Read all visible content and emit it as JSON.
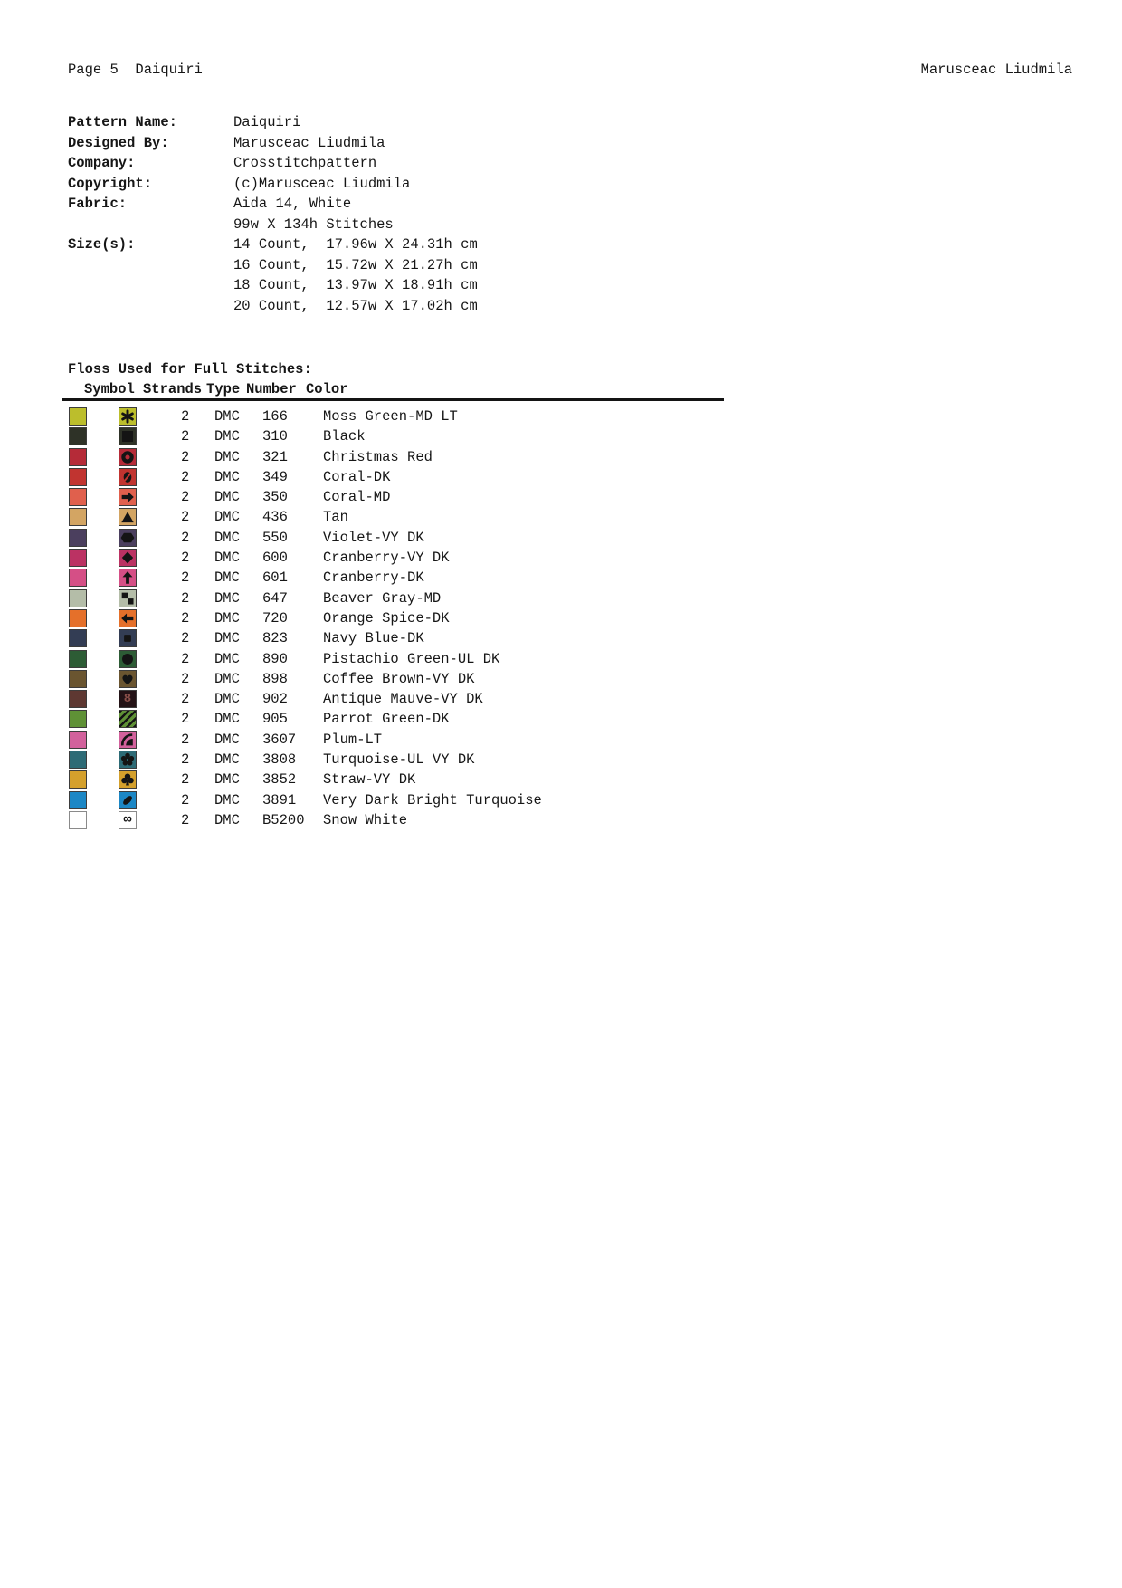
{
  "page_header": {
    "left": "Page 5  Daiquiri",
    "right": "Marusceac Liudmila"
  },
  "info": {
    "rows": [
      {
        "label": "Pattern Name:",
        "value": "Daiquiri"
      },
      {
        "label": "Designed By:",
        "value": "Marusceac Liudmila"
      },
      {
        "label": "Company:",
        "value": "Crosstitchpattern"
      },
      {
        "label": "Copyright:",
        "value": "(c)Marusceac Liudmila"
      },
      {
        "label": "Fabric:",
        "value": "Aida 14, White"
      },
      {
        "label": "",
        "value": "99w X 134h Stitches"
      },
      {
        "label": "Size(s):",
        "value": "14 Count,  17.96w X 24.31h cm"
      },
      {
        "label": "",
        "value": "16 Count,  15.72w X 21.27h cm"
      },
      {
        "label": "",
        "value": "18 Count,  13.97w X 18.91h cm"
      },
      {
        "label": "",
        "value": "20 Count,  12.57w X 17.02h cm"
      }
    ]
  },
  "floss_table": {
    "title": "Floss Used for Full Stitches:",
    "headers": {
      "symbol": "Symbol",
      "strands": "Strands",
      "type": "Type",
      "number": "Number",
      "color": "Color"
    },
    "rows": [
      {
        "symbol": "asterisk",
        "strands": "2",
        "type": "DMC",
        "number": "166",
        "color_name": "Moss Green-MD LT",
        "swatch_color": "#bcbe2c"
      },
      {
        "symbol": "square",
        "strands": "2",
        "type": "DMC",
        "number": "310",
        "color_name": "Black",
        "swatch_color": "#2e3227"
      },
      {
        "symbol": "ring",
        "strands": "2",
        "type": "DMC",
        "number": "321",
        "color_name": "Christmas Red",
        "swatch_color": "#b52b38"
      },
      {
        "symbol": "slashed-zero",
        "strands": "2",
        "type": "DMC",
        "number": "349",
        "color_name": "Coral-DK",
        "swatch_color": "#c13430"
      },
      {
        "symbol": "arrow-right",
        "strands": "2",
        "type": "DMC",
        "number": "350",
        "color_name": "Coral-MD",
        "swatch_color": "#e0604d"
      },
      {
        "symbol": "triangle",
        "strands": "2",
        "type": "DMC",
        "number": "436",
        "color_name": "Tan",
        "swatch_color": "#d3a563"
      },
      {
        "symbol": "hexagon",
        "strands": "2",
        "type": "DMC",
        "number": "550",
        "color_name": "Violet-VY DK",
        "swatch_color": "#4b3f5e"
      },
      {
        "symbol": "diamond",
        "strands": "2",
        "type": "DMC",
        "number": "600",
        "color_name": "Cranberry-VY DK",
        "swatch_color": "#bb3263"
      },
      {
        "symbol": "arrow-up",
        "strands": "2",
        "type": "DMC",
        "number": "601",
        "color_name": "Cranberry-DK",
        "swatch_color": "#d54f86"
      },
      {
        "symbol": "checker",
        "strands": "2",
        "type": "DMC",
        "number": "647",
        "color_name": "Beaver Gray-MD",
        "swatch_color": "#b4bda8"
      },
      {
        "symbol": "arrow-left",
        "strands": "2",
        "type": "DMC",
        "number": "720",
        "color_name": "Orange Spice-DK",
        "swatch_color": "#e5702a"
      },
      {
        "symbol": "small-square",
        "strands": "2",
        "type": "DMC",
        "number": "823",
        "color_name": "Navy Blue-DK",
        "swatch_color": "#333d54"
      },
      {
        "symbol": "circle",
        "strands": "2",
        "type": "DMC",
        "number": "890",
        "color_name": "Pistachio Green-UL DK",
        "swatch_color": "#2d5c35"
      },
      {
        "symbol": "heart",
        "strands": "2",
        "type": "DMC",
        "number": "898",
        "color_name": "Coffee Brown-VY DK",
        "swatch_color": "#6a5530"
      },
      {
        "symbol": "eight",
        "strands": "2",
        "type": "DMC",
        "number": "902",
        "color_name": "Antique Mauve-VY DK",
        "swatch_color": "#5e3832",
        "symbol_bg": "#241316",
        "symbol_fg": "#8a4f49"
      },
      {
        "symbol": "stripes",
        "strands": "2",
        "type": "DMC",
        "number": "905",
        "color_name": "Parrot Green-DK",
        "swatch_color": "#5f9136"
      },
      {
        "symbol": "moon-arc",
        "strands": "2",
        "type": "DMC",
        "number": "3607",
        "color_name": "Plum-LT",
        "swatch_color": "#d2619c"
      },
      {
        "symbol": "flower",
        "strands": "2",
        "type": "DMC",
        "number": "3808",
        "color_name": "Turquoise-UL VY DK",
        "swatch_color": "#2d6b76"
      },
      {
        "symbol": "club",
        "strands": "2",
        "type": "DMC",
        "number": "3852",
        "color_name": "Straw-VY DK",
        "swatch_color": "#d4a02c"
      },
      {
        "symbol": "slash-ellipse",
        "strands": "2",
        "type": "DMC",
        "number": "3891",
        "color_name": "Very Dark Bright Turquoise",
        "swatch_color": "#1c87c5"
      },
      {
        "symbol": "infinity",
        "strands": "2",
        "type": "DMC",
        "number": "B5200",
        "color_name": "Snow White",
        "swatch_color": "#ffffff"
      }
    ]
  }
}
